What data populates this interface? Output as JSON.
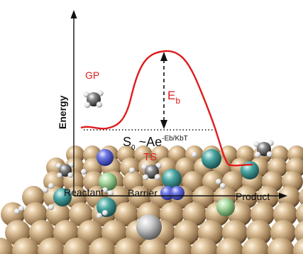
{
  "labels": {
    "gp": "GP",
    "eb": {
      "letter": "E",
      "sub": "b"
    },
    "energy": "Energy",
    "equation": {
      "s": "S",
      "s_sub": "0",
      "tilde_a": " ~Ae",
      "exp": "-Eb/KbT"
    },
    "ts": "TS",
    "reactant": "Reactant",
    "barrier": "Barrier",
    "product": "Product"
  },
  "colors": {
    "curve": "#e01c1c",
    "red_label": "#e01c1c",
    "axis": "#111111",
    "gold_atom": "#c2a57f",
    "blue_atom": "#5a66d6",
    "green_atom": "#a8d8a0",
    "teal_atom": "#4aa6a2",
    "silver_atom": "#c9c9c9"
  }
}
